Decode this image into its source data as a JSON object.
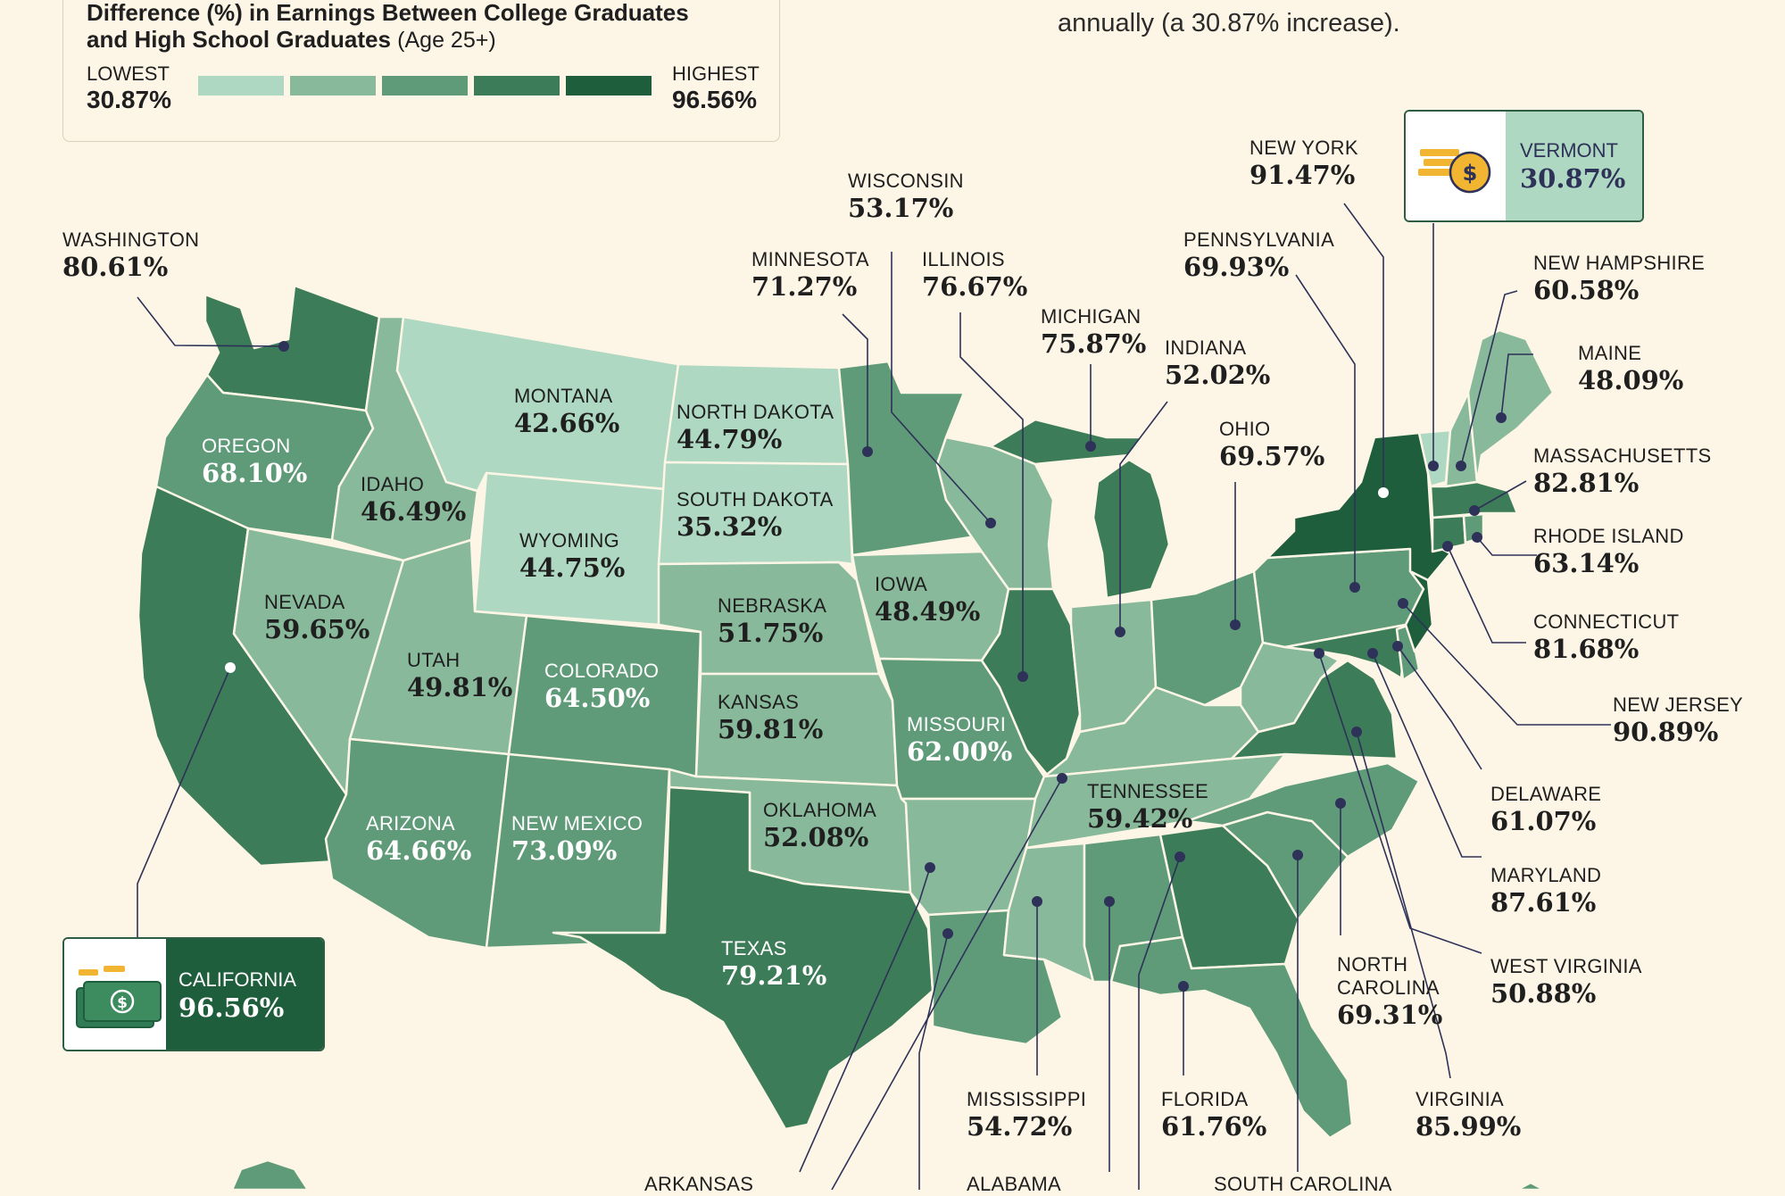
{
  "legend": {
    "title_line1": "Difference (%) in Earnings Between College Graduates",
    "title_line2": "and High School Graduates",
    "title_suffix": "(Age 25+)",
    "low_label": "LOWEST",
    "low_value": "30.87%",
    "high_label": "HIGHEST",
    "high_value": "96.56%",
    "scale_colors": [
      "#aed8c1",
      "#89b99b",
      "#5f9b79",
      "#3c7c58",
      "#1f5e3d"
    ]
  },
  "top_note": "annually (a 30.87% increase).",
  "states": {
    "washington": {
      "name": "WASHINGTON",
      "value": "80.61%"
    },
    "oregon": {
      "name": "OREGON",
      "value": "68.10%"
    },
    "idaho": {
      "name": "IDAHO",
      "value": "46.49%"
    },
    "montana": {
      "name": "MONTANA",
      "value": "42.66%"
    },
    "north_dakota": {
      "name": "NORTH DAKOTA",
      "value": "44.79%"
    },
    "south_dakota": {
      "name": "SOUTH DAKOTA",
      "value": "35.32%"
    },
    "wyoming": {
      "name": "WYOMING",
      "value": "44.75%"
    },
    "nevada": {
      "name": "NEVADA",
      "value": "59.65%"
    },
    "utah": {
      "name": "UTAH",
      "value": "49.81%"
    },
    "colorado": {
      "name": "COLORADO",
      "value": "64.50%"
    },
    "nebraska": {
      "name": "NEBRASKA",
      "value": "51.75%"
    },
    "kansas": {
      "name": "KANSAS",
      "value": "59.81%"
    },
    "iowa": {
      "name": "IOWA",
      "value": "48.49%"
    },
    "missouri": {
      "name": "MISSOURI",
      "value": "62.00%"
    },
    "oklahoma": {
      "name": "OKLAHOMA",
      "value": "52.08%"
    },
    "texas": {
      "name": "TEXAS",
      "value": "79.21%"
    },
    "arizona": {
      "name": "ARIZONA",
      "value": "64.66%"
    },
    "new_mexico": {
      "name": "NEW MEXICO",
      "value": "73.09%"
    },
    "tennessee": {
      "name": "TENNESSEE",
      "value": "59.42%"
    },
    "wisconsin": {
      "name": "WISCONSIN",
      "value": "53.17%"
    },
    "minnesota": {
      "name": "MINNESOTA",
      "value": "71.27%"
    },
    "illinois": {
      "name": "ILLINOIS",
      "value": "76.67%"
    },
    "michigan": {
      "name": "MICHIGAN",
      "value": "75.87%"
    },
    "indiana": {
      "name": "INDIANA",
      "value": "52.02%"
    },
    "ohio": {
      "name": "OHIO",
      "value": "69.57%"
    },
    "pennsylvania": {
      "name": "PENNSYLVANIA",
      "value": "69.93%"
    },
    "new_york": {
      "name": "NEW YORK",
      "value": "91.47%"
    },
    "new_hampshire": {
      "name": "NEW HAMPSHIRE",
      "value": "60.58%"
    },
    "maine": {
      "name": "MAINE",
      "value": "48.09%"
    },
    "massachusetts": {
      "name": "MASSACHUSETTS",
      "value": "82.81%"
    },
    "rhode_island": {
      "name": "RHODE ISLAND",
      "value": "63.14%"
    },
    "connecticut": {
      "name": "CONNECTICUT",
      "value": "81.68%"
    },
    "new_jersey": {
      "name": "NEW JERSEY",
      "value": "90.89%"
    },
    "delaware": {
      "name": "DELAWARE",
      "value": "61.07%"
    },
    "maryland": {
      "name": "MARYLAND",
      "value": "87.61%"
    },
    "west_virginia": {
      "name": "WEST VIRGINIA",
      "value": "50.88%"
    },
    "north_carolina": {
      "name_line1": "NORTH",
      "name_line2": "CAROLINA",
      "value": "69.31%"
    },
    "virginia": {
      "name": "VIRGINIA",
      "value": "85.99%"
    },
    "florida": {
      "name": "FLORIDA",
      "value": "61.76%"
    },
    "mississippi": {
      "name": "MISSISSIPPI",
      "value": "54.72%"
    },
    "arkansas": {
      "name": "ARKANSAS"
    },
    "alabama": {
      "name": "ALABAMA"
    },
    "south_carolina": {
      "name": "SOUTH CAROLINA"
    }
  },
  "callouts": {
    "vermont": {
      "name": "VERMONT",
      "value": "30.87%",
      "icon": "coin-stack-icon"
    },
    "california": {
      "name": "CALIFORNIA",
      "value": "96.56%",
      "icon": "cash-stack-icon"
    }
  }
}
